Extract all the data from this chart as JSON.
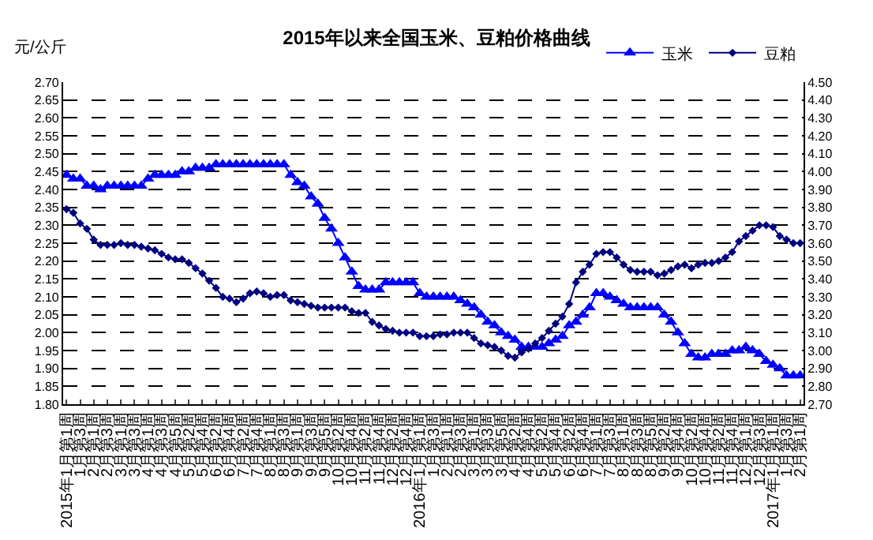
{
  "chart_data": {
    "type": "line",
    "title": "2015年以来全国玉米、豆粕价格曲线",
    "ylabel": "元/公斤",
    "categories": [
      "2015年1月第1周",
      null,
      "1月第3周",
      null,
      "2月第1周",
      null,
      "2月第3周",
      null,
      "3月第1周",
      null,
      "3月第3周",
      null,
      "4月第1周",
      null,
      "4月第3周",
      null,
      "4月第5周",
      null,
      "5月第2周",
      null,
      "5月第4周",
      null,
      "6月第2周",
      null,
      "6月第4周",
      null,
      "7月第2周",
      null,
      "7月第4周",
      null,
      "8月第1周",
      null,
      "8月第3周",
      null,
      "9月第1周",
      null,
      "9月第3周",
      null,
      "9月第5周",
      null,
      "10月第2周",
      null,
      "10月第4周",
      null,
      "11月第2周",
      null,
      "11月第4周",
      null,
      "12月第2周",
      null,
      "12月第4周",
      null,
      "2016年1月第1周",
      null,
      "1月第3周",
      null,
      "2月第1周",
      null,
      "2月第3周",
      null,
      "3月第1周",
      null,
      "3月第3周",
      null,
      "3月第5周",
      null,
      "4月第2周",
      null,
      "4月第4周",
      null,
      "5月第2周",
      null,
      "5月第4周",
      null,
      "6月第2周",
      null,
      "6月第4周",
      null,
      "7月第1周",
      null,
      "7月第3周",
      null,
      "8月第1周",
      null,
      "8月第3周",
      null,
      "8月第5周",
      null,
      "9月第2周",
      null,
      "9月第4周",
      null,
      "10月第2周",
      null,
      "10月第4周",
      null,
      "11月第2周",
      null,
      "11月第4周",
      null,
      "12月第1周",
      null,
      "12月第3周",
      null,
      "2017年1月第1周",
      null,
      "1月第3周",
      null,
      "2月第1周"
    ],
    "series": [
      {
        "name": "玉米",
        "color": "#0000ff",
        "marker": "triangle",
        "values": [
          2.44,
          2.43,
          2.43,
          2.41,
          2.41,
          2.4,
          2.41,
          2.41,
          2.41,
          2.41,
          2.41,
          2.41,
          2.43,
          2.44,
          2.44,
          2.44,
          2.44,
          2.45,
          2.45,
          2.46,
          2.46,
          2.46,
          2.47,
          2.47,
          2.47,
          2.47,
          2.47,
          2.47,
          2.47,
          2.47,
          2.47,
          2.47,
          2.47,
          2.44,
          2.42,
          2.41,
          2.38,
          2.36,
          2.32,
          2.29,
          2.25,
          2.21,
          2.17,
          2.13,
          2.12,
          2.12,
          2.12,
          2.14,
          2.14,
          2.14,
          2.14,
          2.14,
          2.11,
          2.1,
          2.1,
          2.1,
          2.1,
          2.1,
          2.09,
          2.08,
          2.07,
          2.05,
          2.03,
          2.02,
          2.0,
          1.99,
          1.98,
          1.96,
          1.96,
          1.96,
          1.96,
          1.97,
          1.98,
          1.99,
          2.02,
          2.03,
          2.05,
          2.07,
          2.11,
          2.11,
          2.1,
          2.09,
          2.08,
          2.07,
          2.07,
          2.07,
          2.07,
          2.07,
          2.05,
          2.03,
          2.0,
          1.97,
          1.94,
          1.93,
          1.93,
          1.94,
          1.94,
          1.94,
          1.95,
          1.95,
          1.96,
          1.95,
          1.94,
          1.92,
          1.91,
          1.9,
          1.88,
          1.88,
          1.88
        ]
      },
      {
        "name": "豆粕",
        "color": "#000080",
        "marker": "diamond",
        "axis": "y2",
        "values": [
          3.79,
          3.77,
          3.71,
          3.68,
          3.62,
          3.59,
          3.59,
          3.59,
          3.6,
          3.59,
          3.59,
          3.58,
          3.57,
          3.56,
          3.54,
          3.52,
          3.51,
          3.51,
          3.49,
          3.46,
          3.43,
          3.39,
          3.35,
          3.3,
          3.29,
          3.27,
          3.29,
          3.32,
          3.33,
          3.32,
          3.3,
          3.31,
          3.31,
          3.28,
          3.27,
          3.26,
          3.25,
          3.24,
          3.24,
          3.24,
          3.24,
          3.24,
          3.22,
          3.21,
          3.21,
          3.16,
          3.14,
          3.12,
          3.11,
          3.1,
          3.1,
          3.1,
          3.08,
          3.08,
          3.08,
          3.09,
          3.09,
          3.1,
          3.1,
          3.1,
          3.07,
          3.04,
          3.03,
          3.02,
          3.0,
          2.97,
          2.96,
          2.99,
          3.01,
          3.04,
          3.07,
          3.11,
          3.15,
          3.19,
          3.26,
          3.38,
          3.44,
          3.48,
          3.54,
          3.55,
          3.55,
          3.52,
          3.48,
          3.45,
          3.44,
          3.44,
          3.44,
          3.42,
          3.43,
          3.45,
          3.47,
          3.48,
          3.46,
          3.48,
          3.49,
          3.49,
          3.5,
          3.52,
          3.55,
          3.61,
          3.64,
          3.67,
          3.7,
          3.7,
          3.69,
          3.64,
          3.62,
          3.6,
          3.6
        ]
      }
    ],
    "ylim": [
      1.8,
      2.7
    ],
    "yticks": [
      {
        "value": 1.8,
        "label": "1.80"
      },
      {
        "value": 1.85,
        "label": "1.85"
      },
      {
        "value": 1.9,
        "label": "1.90"
      },
      {
        "value": 1.95,
        "label": "1.95"
      },
      {
        "value": 2.0,
        "label": "2.00"
      },
      {
        "value": 2.05,
        "label": "2.05"
      },
      {
        "value": 2.1,
        "label": "2.10"
      },
      {
        "value": 2.15,
        "label": "2.15"
      },
      {
        "value": 2.2,
        "label": "2.20"
      },
      {
        "value": 2.25,
        "label": "2.25"
      },
      {
        "value": 2.3,
        "label": "2.30"
      },
      {
        "value": 2.35,
        "label": "2.35"
      },
      {
        "value": 2.4,
        "label": "2.40"
      },
      {
        "value": 2.45,
        "label": "2.45"
      },
      {
        "value": 2.5,
        "label": "2.50"
      },
      {
        "value": 2.55,
        "label": "2.55"
      },
      {
        "value": 2.6,
        "label": "2.60"
      },
      {
        "value": 2.65,
        "label": "2.65"
      },
      {
        "value": 2.7,
        "label": "2.70"
      }
    ],
    "y2lim": [
      2.7,
      4.5
    ],
    "y2ticks": [
      {
        "value": 2.7,
        "label": "2.70"
      },
      {
        "value": 2.8,
        "label": "2.80"
      },
      {
        "value": 2.9,
        "label": "2.90"
      },
      {
        "value": 3.0,
        "label": "3.00"
      },
      {
        "value": 3.1,
        "label": "3.10"
      },
      {
        "value": 3.2,
        "label": "3.20"
      },
      {
        "value": 3.3,
        "label": "3.30"
      },
      {
        "value": 3.4,
        "label": "3.40"
      },
      {
        "value": 3.5,
        "label": "3.50"
      },
      {
        "value": 3.6,
        "label": "3.60"
      },
      {
        "value": 3.7,
        "label": "3.70"
      },
      {
        "value": 3.8,
        "label": "3.80"
      },
      {
        "value": 3.9,
        "label": "3.90"
      },
      {
        "value": 4.0,
        "label": "4.00"
      },
      {
        "value": 4.1,
        "label": "4.10"
      },
      {
        "value": 4.2,
        "label": "4.20"
      },
      {
        "value": 4.3,
        "label": "4.30"
      },
      {
        "value": 4.4,
        "label": "4.40"
      },
      {
        "value": 4.5,
        "label": "4.50"
      }
    ],
    "grid": "y",
    "legend": "top right",
    "line_style": "solid"
  }
}
